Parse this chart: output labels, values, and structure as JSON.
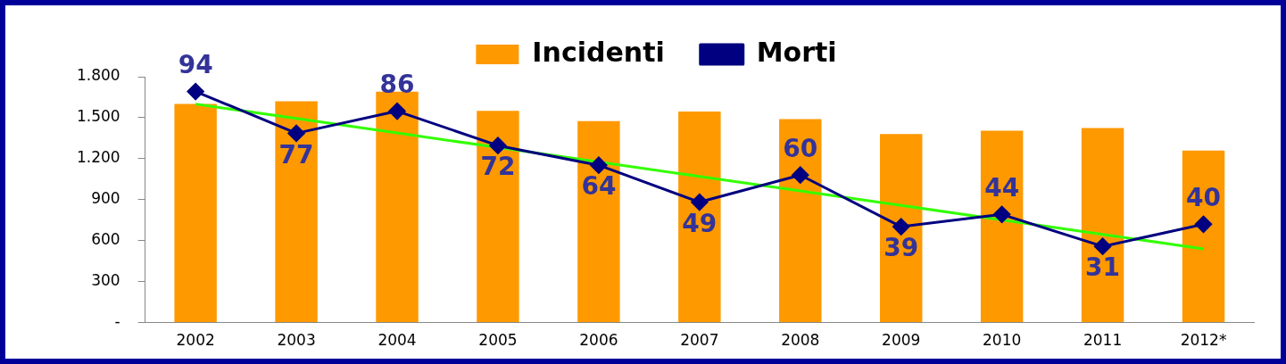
{
  "chart_data": {
    "type": "bar",
    "categories": [
      "2002",
      "2003",
      "2004",
      "2005",
      "2006",
      "2007",
      "2008",
      "2009",
      "2010",
      "2011",
      "2012*"
    ],
    "series": [
      {
        "name": "Incidenti",
        "color": "#ff9900",
        "values": [
          1600,
          1620,
          1690,
          1550,
          1475,
          1545,
          1490,
          1380,
          1405,
          1425,
          1260
        ]
      },
      {
        "name": "Morti",
        "type": "line",
        "axis": "y2",
        "color": "#000080",
        "marker": "diamond",
        "data_labels": true,
        "values": [
          94,
          77,
          86,
          72,
          64,
          49,
          60,
          39,
          44,
          31,
          40
        ]
      },
      {
        "type": "line",
        "color": "#33ff00",
        "marker": "none",
        "values": [
          1600,
          1494,
          1388,
          1282,
          1176,
          1070,
          964,
          858,
          752,
          646,
          540
        ]
      }
    ],
    "ylim": [
      0,
      1800
    ],
    "yticks": [
      {
        "value": 0,
        "label": "-"
      },
      {
        "value": 300,
        "label": "300"
      },
      {
        "value": 600,
        "label": "600"
      },
      {
        "value": 900,
        "label": "900"
      },
      {
        "value": 1200,
        "label": "1.200"
      },
      {
        "value": 1500,
        "label": "1.500"
      },
      {
        "value": 1800,
        "label": "1.800"
      }
    ],
    "y2lim": [
      0,
      100
    ],
    "tick_labels": "xy",
    "grid": false,
    "legend": "top"
  }
}
